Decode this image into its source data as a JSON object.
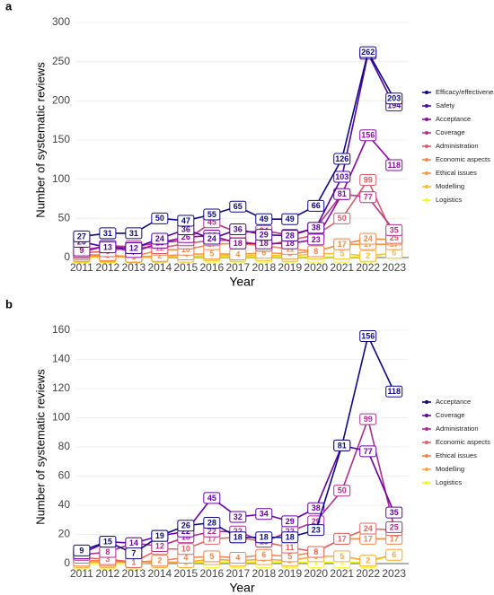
{
  "chart_data": [
    {
      "type": "line",
      "panel_label": "a",
      "x_label": "Year",
      "y_label": "Number of systematic reviews",
      "categories": [
        "2011",
        "2012",
        "2013",
        "2014",
        "2015",
        "2016",
        "2017",
        "2018",
        "2019",
        "2020",
        "2021",
        "2022",
        "2023"
      ],
      "ylim": [
        0,
        300
      ],
      "yticks": [
        0,
        50,
        100,
        150,
        200,
        250,
        300
      ],
      "grid": true,
      "legend": "right",
      "series": [
        {
          "name": "Efficacy/effectiveness",
          "color": "#0d0887",
          "values": [
            27,
            31,
            31,
            50,
            47,
            55,
            65,
            49,
            49,
            66,
            126,
            262,
            203
          ]
        },
        {
          "name": "Safety",
          "color": "#5302a3",
          "values": [
            20,
            13,
            12,
            24,
            36,
            24,
            36,
            29,
            28,
            38,
            103,
            260,
            194
          ]
        },
        {
          "name": "Acceptance",
          "color": "#8b0aa5",
          "values": [
            9,
            15,
            7,
            19,
            26,
            28,
            18,
            18,
            18,
            23,
            81,
            156,
            118
          ]
        },
        {
          "name": "Coverage",
          "color": "#b83289",
          "values": [
            7,
            15,
            14,
            19,
            22,
            45,
            32,
            34,
            29,
            38,
            81,
            77,
            35
          ]
        },
        {
          "name": "Administration",
          "color": "#db5c68",
          "values": [
            6,
            8,
            14,
            12,
            18,
            22,
            22,
            15,
            22,
            29,
            50,
            99,
            25
          ]
        },
        {
          "name": "Economic aspects",
          "color": "#f48849",
          "values": [
            4,
            3,
            1,
            10,
            10,
            17,
            18,
            15,
            11,
            8,
            17,
            24,
            23
          ]
        },
        {
          "name": "Ethical issues",
          "color": "#f89540",
          "values": [
            2,
            2,
            1,
            2,
            4,
            5,
            4,
            6,
            5,
            8,
            17,
            17,
            17
          ]
        },
        {
          "name": "Modelling",
          "color": "#febd2a",
          "values": [
            1,
            1,
            1,
            1,
            1,
            3,
            2,
            3,
            2,
            5,
            5,
            2,
            6
          ]
        },
        {
          "name": "Logistics",
          "color": "#f0f921",
          "values": [
            0,
            0,
            0,
            1,
            1,
            1,
            1,
            1,
            1,
            1,
            1,
            1,
            6
          ]
        }
      ]
    },
    {
      "type": "line",
      "panel_label": "b",
      "x_label": "Year",
      "y_label": "Number of systematic reviews",
      "categories": [
        "2011",
        "2012",
        "2013",
        "2014",
        "2015",
        "2016",
        "2017",
        "2018",
        "2019",
        "2020",
        "2021",
        "2022",
        "2023"
      ],
      "ylim": [
        0,
        160
      ],
      "yticks": [
        0,
        20,
        40,
        60,
        80,
        100,
        120,
        140,
        160
      ],
      "grid": true,
      "legend": "right",
      "series": [
        {
          "name": "Acceptance",
          "color": "#0d0887",
          "values": [
            9,
            15,
            7,
            19,
            26,
            28,
            18,
            18,
            18,
            23,
            81,
            156,
            118
          ]
        },
        {
          "name": "Coverage",
          "color": "#6a00a8",
          "values": [
            7,
            15,
            14,
            19,
            22,
            45,
            32,
            34,
            29,
            38,
            81,
            77,
            35
          ]
        },
        {
          "name": "Administration",
          "color": "#b12a90",
          "values": [
            6,
            8,
            14,
            12,
            18,
            22,
            22,
            15,
            22,
            29,
            50,
            99,
            25
          ]
        },
        {
          "name": "Economic aspects",
          "color": "#e16462",
          "values": [
            4,
            3,
            1,
            10,
            10,
            17,
            18,
            15,
            11,
            8,
            17,
            24,
            23
          ]
        },
        {
          "name": "Ethical issues",
          "color": "#f2844b",
          "values": [
            2,
            2,
            1,
            2,
            4,
            5,
            4,
            6,
            5,
            8,
            17,
            17,
            17
          ]
        },
        {
          "name": "Modelling",
          "color": "#fca636",
          "values": [
            1,
            1,
            1,
            1,
            1,
            3,
            2,
            3,
            2,
            5,
            5,
            2,
            6
          ]
        },
        {
          "name": "Logistics",
          "color": "#f0f921",
          "values": [
            0,
            0,
            0,
            1,
            1,
            1,
            1,
            1,
            1,
            1,
            1,
            1,
            6
          ]
        }
      ]
    }
  ]
}
